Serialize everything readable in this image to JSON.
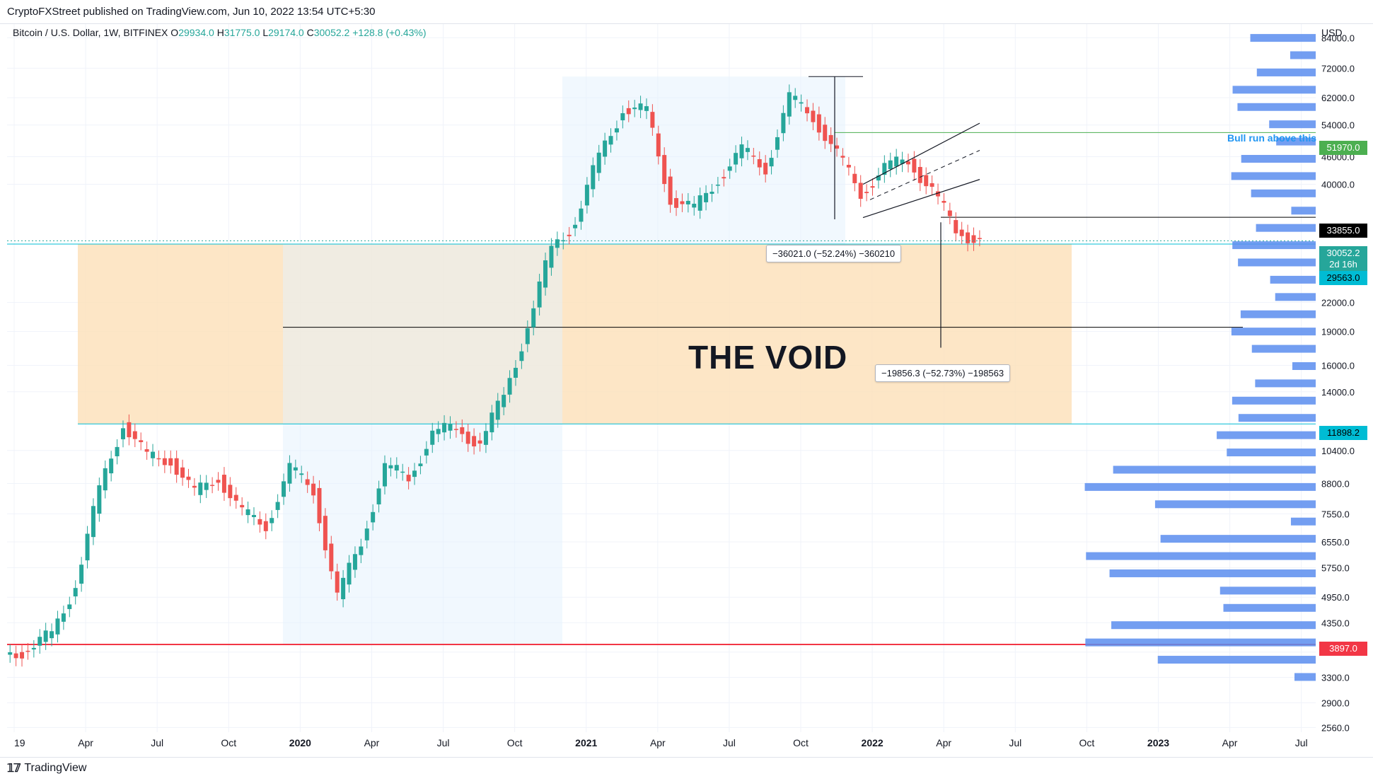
{
  "header": {
    "published_text": "CryptoFXStreet published on TradingView.com, Jun 10, 2022 13:54 UTC+5:30"
  },
  "legend": {
    "symbol": "Bitcoin / U.S. Dollar, 1W, BITFINEX",
    "o_label": "O",
    "o_value": "29934.0",
    "h_label": "H",
    "h_value": "31775.0",
    "l_label": "L",
    "l_value": "29174.0",
    "c_label": "C",
    "c_value": "30052.2",
    "change": "+128.8 (+0.43%)"
  },
  "currency": "USD",
  "annotations": {
    "void_title": "THE VOID",
    "measure_1": "−36021.0 (−52.24%) −360210",
    "measure_2": "−19856.3 (−52.73%) −198563",
    "bull_run": "Bull run above this"
  },
  "price_badges": [
    {
      "text": "51970.0",
      "color": "#4caf50",
      "text_color": "#ffffff"
    },
    {
      "text": "33855.0",
      "color": "#000000",
      "text_color": "#ffffff"
    },
    {
      "text": "30052.2",
      "color": "#26a69a",
      "text_color": "#ffffff"
    },
    {
      "text": "2d 16h",
      "color": "#26a69a",
      "text_color": "#ffffff"
    },
    {
      "text": "29563.0",
      "color": "#00bcd4",
      "text_color": "#000000"
    },
    {
      "text": "11898.2",
      "color": "#00bcd4",
      "text_color": "#000000"
    },
    {
      "text": "3897.0",
      "color": "#f23645",
      "text_color": "#ffffff"
    }
  ],
  "footer": {
    "brand": "TradingView"
  },
  "chart_data": {
    "type": "candlestick",
    "title": "Bitcoin / U.S. Dollar, 1W, BITFINEX",
    "y_scale": "log",
    "y_ticks": [
      "84000.0",
      "72000.0",
      "62000.0",
      "54000.0",
      "46000.0",
      "40000.0",
      "22000.0",
      "19000.0",
      "16000.0",
      "14000.0",
      "10400.0",
      "8800.0",
      "7550.0",
      "6550.0",
      "5750.0",
      "4950.0",
      "4350.0",
      "3750.0",
      "3300.0",
      "2900.0",
      "2560.0"
    ],
    "x_ticks": [
      "19",
      "Apr",
      "Jul",
      "Oct",
      "2020",
      "Apr",
      "Jul",
      "Oct",
      "2021",
      "Apr",
      "Jul",
      "Oct",
      "2022",
      "Apr",
      "Jul",
      "Oct",
      "2023",
      "Apr",
      "Jul"
    ],
    "x_range": [
      "2019-01",
      "2023-08"
    ],
    "y_range": [
      2500,
      90000
    ],
    "last_price": 30052.2,
    "horizontal_levels": [
      {
        "value": 51970.0,
        "color": "#4caf50"
      },
      {
        "value": 33855.0,
        "color": "#000000"
      },
      {
        "value": 29563.0,
        "color": "#00bcd4"
      },
      {
        "value": 11898.2,
        "color": "#00bcd4"
      },
      {
        "value": 3897.0,
        "color": "#f23645"
      },
      {
        "value": 19400,
        "color": "#000000"
      }
    ],
    "zones": [
      {
        "name": "void",
        "from": 11898.2,
        "to": 29563.0,
        "color": "#fde0b8"
      }
    ],
    "price_path": [
      [
        "2019-01",
        3700
      ],
      [
        "2019-02",
        3800
      ],
      [
        "2019-03",
        4100
      ],
      [
        "2019-04",
        5300
      ],
      [
        "2019-05",
        8500
      ],
      [
        "2019-06",
        12000
      ],
      [
        "2019-07",
        10000
      ],
      [
        "2019-08",
        10000
      ],
      [
        "2019-09",
        8300
      ],
      [
        "2019-10",
        9200
      ],
      [
        "2019-11",
        7500
      ],
      [
        "2019-12",
        7200
      ],
      [
        "2020-01",
        9400
      ],
      [
        "2020-02",
        8600
      ],
      [
        "2020-03",
        4900
      ],
      [
        "2020-04",
        6600
      ],
      [
        "2020-05",
        9500
      ],
      [
        "2020-06",
        9100
      ],
      [
        "2020-07",
        11300
      ],
      [
        "2020-08",
        11700
      ],
      [
        "2020-09",
        10700
      ],
      [
        "2020-10",
        13800
      ],
      [
        "2020-11",
        19400
      ],
      [
        "2020-12",
        29000
      ],
      [
        "2021-01",
        33100
      ],
      [
        "2021-02",
        46000
      ],
      [
        "2021-03",
        58800
      ],
      [
        "2021-04",
        57700
      ],
      [
        "2021-05",
        37300
      ],
      [
        "2021-06",
        35000
      ],
      [
        "2021-07",
        41500
      ],
      [
        "2021-08",
        47100
      ],
      [
        "2021-09",
        43800
      ],
      [
        "2021-10",
        61300
      ],
      [
        "2021-11",
        57000
      ],
      [
        "2021-12",
        46200
      ],
      [
        "2022-01",
        38500
      ],
      [
        "2022-02",
        43200
      ],
      [
        "2022-03",
        45500
      ],
      [
        "2022-04",
        38600
      ],
      [
        "2022-05",
        31800
      ],
      [
        "2022-06",
        30052.2
      ]
    ]
  }
}
